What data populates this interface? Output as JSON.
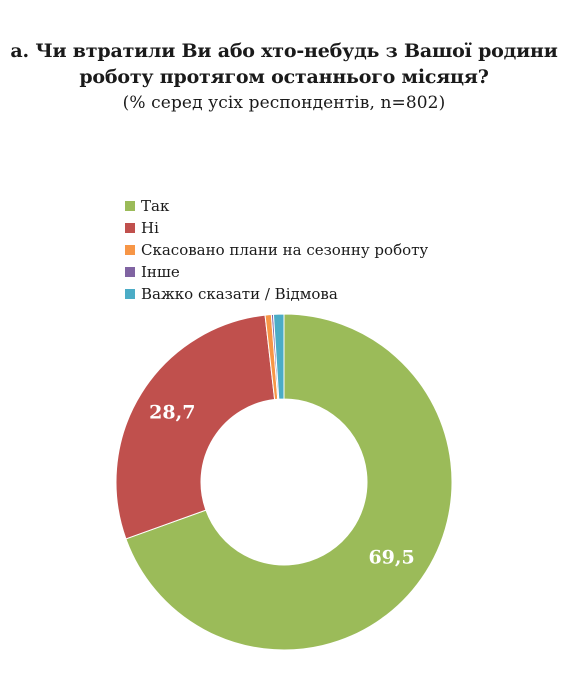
{
  "title": {
    "line1": "а. Чи втратили Ви або хто-небудь з Вашої родини",
    "line2": "роботу протягом останнього місяця?",
    "subtitle": "(% серед усіх респондентів, n=802)"
  },
  "chart_data": {
    "type": "pie",
    "donut": true,
    "title": "а. Чи втратили Ви або хто-небудь з Вашої родини роботу протягом останнього місяця?",
    "subtitle": "(% серед усіх респондентів, n=802)",
    "legend_position": "top-left",
    "slices": [
      {
        "label": "Так",
        "value": 69.5,
        "color": "#9bbb59",
        "data_label": "69,5"
      },
      {
        "label": "Ні",
        "value": 28.7,
        "color": "#c0504d",
        "data_label": "28,7"
      },
      {
        "label": "Скасовано плани на сезонну роботу",
        "value": 0.6,
        "color": "#f79646",
        "data_label": ""
      },
      {
        "label": "Інше",
        "value": 0.2,
        "color": "#8064a2",
        "data_label": ""
      },
      {
        "label": "Важко сказати / Відмова",
        "value": 1.0,
        "color": "#4bacc6",
        "data_label": ""
      }
    ]
  }
}
